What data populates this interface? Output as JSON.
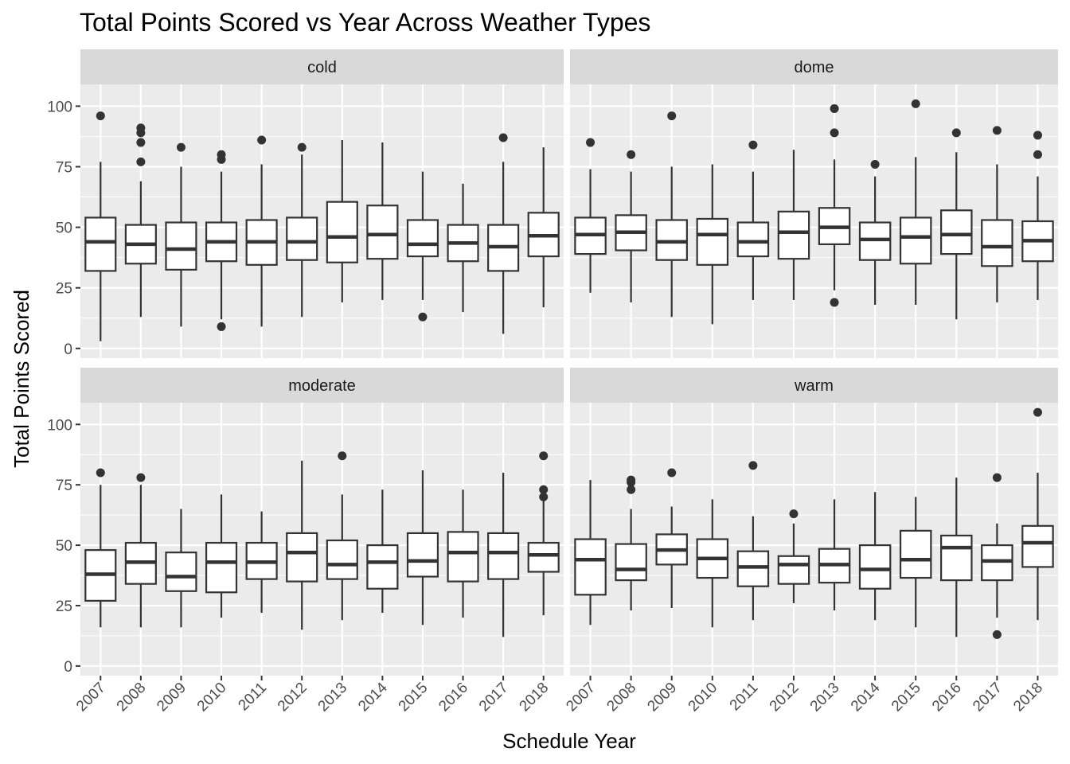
{
  "chart_data": {
    "type": "boxplot",
    "title": "Total Points Scored vs Year Across Weather Types",
    "xlabel": "Schedule Year",
    "ylabel": "Total Points Scored",
    "categories": [
      "2007",
      "2008",
      "2009",
      "2010",
      "2011",
      "2012",
      "2013",
      "2014",
      "2015",
      "2016",
      "2017",
      "2018"
    ],
    "y_ticks": [
      0,
      25,
      50,
      75,
      100
    ],
    "ylim": [
      -4,
      109
    ],
    "layout": "facet grid 2x2, strip labels on top",
    "colors": {
      "panel_bg": "#ebebeb",
      "grid": "#ffffff",
      "strip_bg": "#d9d9d9",
      "box_fill": "#ffffff",
      "box_line": "#333333"
    },
    "facets": [
      {
        "name": "cold",
        "boxes": [
          {
            "x": "2007",
            "min": 3,
            "q1": 32,
            "median": 44,
            "q3": 54,
            "max": 77,
            "outliers": [
              96
            ]
          },
          {
            "x": "2008",
            "min": 13,
            "q1": 35,
            "median": 43,
            "q3": 51,
            "max": 69,
            "outliers": [
              77,
              85,
              89,
              91
            ]
          },
          {
            "x": "2009",
            "min": 9,
            "q1": 32.5,
            "median": 41,
            "q3": 52,
            "max": 75,
            "outliers": [
              83
            ]
          },
          {
            "x": "2010",
            "min": 12,
            "q1": 36,
            "median": 44,
            "q3": 52,
            "max": 73,
            "outliers": [
              9,
              78,
              80
            ]
          },
          {
            "x": "2011",
            "min": 9,
            "q1": 34.5,
            "median": 44,
            "q3": 53,
            "max": 76,
            "outliers": [
              86
            ]
          },
          {
            "x": "2012",
            "min": 13,
            "q1": 36.5,
            "median": 44,
            "q3": 54,
            "max": 80,
            "outliers": [
              83
            ]
          },
          {
            "x": "2013",
            "min": 19,
            "q1": 35.5,
            "median": 46,
            "q3": 60.5,
            "max": 86,
            "outliers": []
          },
          {
            "x": "2014",
            "min": 20,
            "q1": 37,
            "median": 47,
            "q3": 59,
            "max": 85,
            "outliers": []
          },
          {
            "x": "2015",
            "min": 20,
            "q1": 38,
            "median": 43,
            "q3": 53,
            "max": 73,
            "outliers": [
              13
            ]
          },
          {
            "x": "2016",
            "min": 15,
            "q1": 36,
            "median": 43.5,
            "q3": 51,
            "max": 68,
            "outliers": []
          },
          {
            "x": "2017",
            "min": 6,
            "q1": 32,
            "median": 42,
            "q3": 51,
            "max": 77,
            "outliers": [
              87
            ]
          },
          {
            "x": "2018",
            "min": 17,
            "q1": 38,
            "median": 46.5,
            "q3": 56,
            "max": 83,
            "outliers": []
          }
        ]
      },
      {
        "name": "dome",
        "boxes": [
          {
            "x": "2007",
            "min": 23,
            "q1": 39,
            "median": 47,
            "q3": 54,
            "max": 74,
            "outliers": [
              85
            ]
          },
          {
            "x": "2008",
            "min": 19,
            "q1": 40.5,
            "median": 48,
            "q3": 55,
            "max": 73,
            "outliers": [
              80
            ]
          },
          {
            "x": "2009",
            "min": 13,
            "q1": 36.5,
            "median": 44,
            "q3": 53,
            "max": 75,
            "outliers": [
              96
            ]
          },
          {
            "x": "2010",
            "min": 10,
            "q1": 34.5,
            "median": 47,
            "q3": 53.5,
            "max": 76,
            "outliers": []
          },
          {
            "x": "2011",
            "min": 20,
            "q1": 38,
            "median": 44,
            "q3": 52,
            "max": 73,
            "outliers": [
              84
            ]
          },
          {
            "x": "2012",
            "min": 20,
            "q1": 37,
            "median": 48,
            "q3": 56.5,
            "max": 82,
            "outliers": []
          },
          {
            "x": "2013",
            "min": 24,
            "q1": 43,
            "median": 50,
            "q3": 58,
            "max": 78,
            "outliers": [
              19,
              89,
              99
            ]
          },
          {
            "x": "2014",
            "min": 18,
            "q1": 36.5,
            "median": 45,
            "q3": 52,
            "max": 71,
            "outliers": [
              76
            ]
          },
          {
            "x": "2015",
            "min": 18,
            "q1": 35,
            "median": 46,
            "q3": 54,
            "max": 79,
            "outliers": [
              101
            ]
          },
          {
            "x": "2016",
            "min": 12,
            "q1": 39,
            "median": 47,
            "q3": 57,
            "max": 81,
            "outliers": [
              89
            ]
          },
          {
            "x": "2017",
            "min": 19,
            "q1": 34,
            "median": 42,
            "q3": 53,
            "max": 76,
            "outliers": [
              90
            ]
          },
          {
            "x": "2018",
            "min": 20,
            "q1": 36,
            "median": 44.5,
            "q3": 52.5,
            "max": 71,
            "outliers": [
              80,
              88
            ]
          }
        ]
      },
      {
        "name": "moderate",
        "boxes": [
          {
            "x": "2007",
            "min": 16,
            "q1": 27,
            "median": 38,
            "q3": 48,
            "max": 75,
            "outliers": [
              80
            ]
          },
          {
            "x": "2008",
            "min": 16,
            "q1": 34,
            "median": 43,
            "q3": 51,
            "max": 75,
            "outliers": [
              78
            ]
          },
          {
            "x": "2009",
            "min": 16,
            "q1": 31,
            "median": 37,
            "q3": 47,
            "max": 65,
            "outliers": []
          },
          {
            "x": "2010",
            "min": 20,
            "q1": 30.5,
            "median": 43,
            "q3": 51,
            "max": 71,
            "outliers": []
          },
          {
            "x": "2011",
            "min": 22,
            "q1": 36,
            "median": 43,
            "q3": 51,
            "max": 64,
            "outliers": []
          },
          {
            "x": "2012",
            "min": 15,
            "q1": 35,
            "median": 47,
            "q3": 55,
            "max": 85,
            "outliers": []
          },
          {
            "x": "2013",
            "min": 19,
            "q1": 36,
            "median": 42,
            "q3": 52,
            "max": 71,
            "outliers": [
              87
            ]
          },
          {
            "x": "2014",
            "min": 22,
            "q1": 32,
            "median": 43,
            "q3": 50,
            "max": 73,
            "outliers": []
          },
          {
            "x": "2015",
            "min": 17,
            "q1": 37,
            "median": 43.5,
            "q3": 55,
            "max": 81,
            "outliers": []
          },
          {
            "x": "2016",
            "min": 20,
            "q1": 35,
            "median": 47,
            "q3": 55.5,
            "max": 73,
            "outliers": []
          },
          {
            "x": "2017",
            "min": 12,
            "q1": 36,
            "median": 47,
            "q3": 55,
            "max": 80,
            "outliers": []
          },
          {
            "x": "2018",
            "min": 21,
            "q1": 39,
            "median": 46,
            "q3": 51,
            "max": 69,
            "outliers": [
              70,
              73,
              87
            ]
          }
        ]
      },
      {
        "name": "warm",
        "boxes": [
          {
            "x": "2007",
            "min": 17,
            "q1": 29.5,
            "median": 44,
            "q3": 52.5,
            "max": 77,
            "outliers": []
          },
          {
            "x": "2008",
            "min": 23,
            "q1": 35.5,
            "median": 40,
            "q3": 50.5,
            "max": 65,
            "outliers": [
              73,
              76,
              77
            ]
          },
          {
            "x": "2009",
            "min": 24,
            "q1": 42,
            "median": 48,
            "q3": 54.5,
            "max": 66,
            "outliers": [
              80
            ]
          },
          {
            "x": "2010",
            "min": 16,
            "q1": 36.5,
            "median": 44.5,
            "q3": 52.5,
            "max": 69,
            "outliers": []
          },
          {
            "x": "2011",
            "min": 19,
            "q1": 33,
            "median": 41,
            "q3": 47.5,
            "max": 62,
            "outliers": [
              83
            ]
          },
          {
            "x": "2012",
            "min": 26,
            "q1": 34,
            "median": 42,
            "q3": 45.5,
            "max": 59,
            "outliers": [
              63
            ]
          },
          {
            "x": "2013",
            "min": 23,
            "q1": 34.5,
            "median": 42,
            "q3": 48.5,
            "max": 69,
            "outliers": []
          },
          {
            "x": "2014",
            "min": 19,
            "q1": 32,
            "median": 40,
            "q3": 50,
            "max": 72,
            "outliers": []
          },
          {
            "x": "2015",
            "min": 16,
            "q1": 36.5,
            "median": 44,
            "q3": 56,
            "max": 70,
            "outliers": []
          },
          {
            "x": "2016",
            "min": 12,
            "q1": 35.5,
            "median": 49,
            "q3": 54,
            "max": 78,
            "outliers": []
          },
          {
            "x": "2017",
            "min": 20,
            "q1": 35.5,
            "median": 43.5,
            "q3": 50,
            "max": 59,
            "outliers": [
              13,
              78
            ]
          },
          {
            "x": "2018",
            "min": 19,
            "q1": 41,
            "median": 51,
            "q3": 58,
            "max": 80,
            "outliers": [
              105
            ]
          }
        ]
      }
    ]
  }
}
